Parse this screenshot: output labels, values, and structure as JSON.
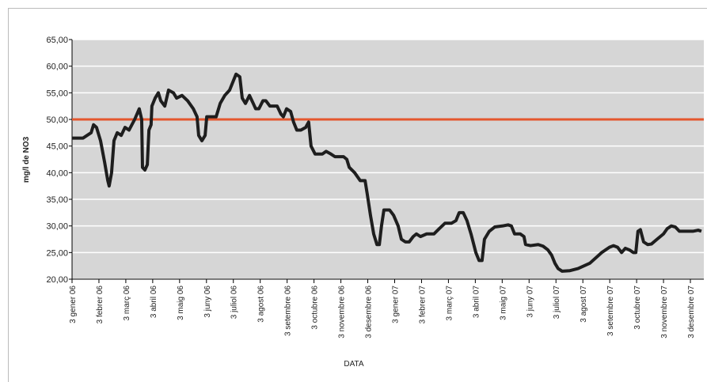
{
  "chart_data": {
    "type": "line",
    "x_label": "DATA",
    "y_label": "mg/l de NO3",
    "xlim": [
      0,
      23.5
    ],
    "xticks": [
      {
        "value": 0,
        "label": "3 gener 06"
      },
      {
        "value": 1,
        "label": "3 febrer 06"
      },
      {
        "value": 2,
        "label": "3 març 06"
      },
      {
        "value": 3,
        "label": "3 abril 06"
      },
      {
        "value": 4,
        "label": "3 maig 06"
      },
      {
        "value": 5,
        "label": "3 juny 06"
      },
      {
        "value": 6,
        "label": "3 juliol 06"
      },
      {
        "value": 7,
        "label": "3 agost 06"
      },
      {
        "value": 8,
        "label": "3 setembre 06"
      },
      {
        "value": 9,
        "label": "3 octubre 06"
      },
      {
        "value": 10,
        "label": "3 novembre 06"
      },
      {
        "value": 11,
        "label": "3 desembre 06"
      },
      {
        "value": 12,
        "label": "3 gener 07"
      },
      {
        "value": 13,
        "label": "3 febrer 07"
      },
      {
        "value": 14,
        "label": "3 març 07"
      },
      {
        "value": 15,
        "label": "3 abril 07"
      },
      {
        "value": 16,
        "label": "3 maig 07"
      },
      {
        "value": 17,
        "label": "3 juny 07"
      },
      {
        "value": 18,
        "label": "3 juliol 07"
      },
      {
        "value": 19,
        "label": "3 agost 07"
      },
      {
        "value": 20,
        "label": "3 setembre 07"
      },
      {
        "value": 21,
        "label": "3 octubre 07"
      },
      {
        "value": 22,
        "label": "3 novembre 07"
      },
      {
        "value": 23,
        "label": "3 desembre 07"
      }
    ],
    "ylim": [
      20,
      65
    ],
    "yticks": [
      {
        "value": 20,
        "label": "20,00"
      },
      {
        "value": 25,
        "label": "25,00"
      },
      {
        "value": 30,
        "label": "30,00"
      },
      {
        "value": 35,
        "label": "35,00"
      },
      {
        "value": 40,
        "label": "40,00"
      },
      {
        "value": 45,
        "label": "45,00"
      },
      {
        "value": 50,
        "label": "50,00"
      },
      {
        "value": 55,
        "label": "55,00"
      },
      {
        "value": 60,
        "label": "60,00"
      },
      {
        "value": 65,
        "label": "65,00"
      }
    ],
    "grid": true,
    "reference_line": {
      "value": 50,
      "color": "#e4572e"
    },
    "x": [
      0,
      0.41,
      0.71,
      0.8,
      0.91,
      1.06,
      1.21,
      1.33,
      1.38,
      1.47,
      1.56,
      1.68,
      1.83,
      1.97,
      2.12,
      2.33,
      2.5,
      2.59,
      2.62,
      2.71,
      2.8,
      2.86,
      2.94,
      2.97,
      3.09,
      3.21,
      3.3,
      3.45,
      3.59,
      3.77,
      3.89,
      4.09,
      4.3,
      4.51,
      4.65,
      4.71,
      4.83,
      4.95,
      5.01,
      5.12,
      5.36,
      5.51,
      5.68,
      5.86,
      5.98,
      6.1,
      6.24,
      6.33,
      6.45,
      6.6,
      6.74,
      6.83,
      6.95,
      7.1,
      7.21,
      7.36,
      7.63,
      7.77,
      7.86,
      7.98,
      8.13,
      8.24,
      8.36,
      8.51,
      8.69,
      8.8,
      8.89,
      9.04,
      9.31,
      9.45,
      9.63,
      9.78,
      10.1,
      10.22,
      10.31,
      10.51,
      10.72,
      10.9,
      10.98,
      11.1,
      11.22,
      11.34,
      11.43,
      11.51,
      11.6,
      11.81,
      11.96,
      12.13,
      12.25,
      12.4,
      12.54,
      12.69,
      12.81,
      12.96,
      13.19,
      13.46,
      13.66,
      13.87,
      14.11,
      14.28,
      14.4,
      14.55,
      14.69,
      14.84,
      15.02,
      15.14,
      15.25,
      15.34,
      15.52,
      15.72,
      16.02,
      16.22,
      16.34,
      16.46,
      16.67,
      16.81,
      16.87,
      17.05,
      17.34,
      17.52,
      17.7,
      17.84,
      17.96,
      18.08,
      18.23,
      18.52,
      18.82,
      19.26,
      19.7,
      19.99,
      20.14,
      20.29,
      20.44,
      20.58,
      20.73,
      20.88,
      20.97,
      21.05,
      21.14,
      21.26,
      21.41,
      21.55,
      21.76,
      22.0,
      22.14,
      22.29,
      22.44,
      22.59,
      22.79,
      23.09,
      23.29,
      23.41
    ],
    "series": [
      {
        "color": "#1e1e1e",
        "values": [
          46.5,
          46.5,
          47.5,
          49,
          48.5,
          46,
          42,
          38.5,
          37.5,
          40,
          46,
          47.5,
          47,
          48.5,
          48,
          50,
          52,
          50,
          41,
          40.5,
          41.5,
          48,
          49,
          52.5,
          54,
          55,
          53.5,
          52.5,
          55.5,
          55,
          54,
          54.5,
          53.5,
          52,
          50.5,
          47,
          46,
          47,
          50.5,
          50.5,
          50.5,
          53,
          54.5,
          55.5,
          57,
          58.5,
          58,
          54,
          53,
          54.5,
          53,
          52,
          52,
          53.5,
          53.5,
          52.5,
          52.5,
          51,
          50.5,
          52,
          51.5,
          49.5,
          48,
          48,
          48.5,
          49.5,
          45,
          43.5,
          43.5,
          44,
          43.5,
          43,
          43,
          42.5,
          41,
          40,
          38.5,
          38.5,
          36,
          32,
          28.5,
          26.5,
          26.5,
          30,
          33,
          33,
          32,
          30,
          27.5,
          27,
          27,
          28,
          28.5,
          28,
          28.5,
          28.5,
          29.5,
          30.5,
          30.5,
          31,
          32.5,
          32.5,
          31,
          28.5,
          25,
          23.5,
          23.5,
          27.5,
          29,
          29.8,
          30,
          30.2,
          30,
          28.5,
          28.5,
          28,
          26.5,
          26.3,
          26.5,
          26.2,
          25.5,
          24.5,
          23,
          22,
          21.5,
          21.6,
          22,
          23,
          25,
          26,
          26.3,
          26,
          25,
          25.8,
          25.5,
          25,
          25,
          29,
          29.3,
          27,
          26.5,
          26.6,
          27.5,
          28.5,
          29.5,
          30,
          29.8,
          29,
          29,
          29,
          29.2,
          29
        ]
      }
    ]
  }
}
